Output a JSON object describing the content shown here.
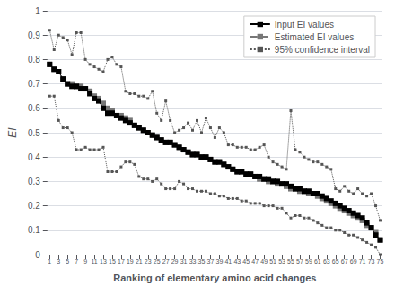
{
  "chart_data": {
    "type": "line",
    "x": [
      1,
      2,
      3,
      4,
      5,
      6,
      7,
      8,
      9,
      10,
      11,
      12,
      13,
      14,
      15,
      16,
      17,
      18,
      19,
      20,
      21,
      22,
      23,
      24,
      25,
      26,
      27,
      28,
      29,
      30,
      31,
      32,
      33,
      34,
      35,
      36,
      37,
      38,
      39,
      40,
      41,
      42,
      43,
      44,
      45,
      46,
      47,
      48,
      49,
      50,
      51,
      52,
      53,
      54,
      55,
      56,
      57,
      58,
      59,
      60,
      61,
      62,
      63,
      64,
      65,
      66,
      67,
      68,
      69,
      70,
      71,
      72,
      73,
      74,
      75
    ],
    "series": [
      {
        "name": "Input EI values",
        "color": "#000000",
        "marker": "square",
        "line_style": "solid",
        "values": [
          0.78,
          0.76,
          0.75,
          0.72,
          0.7,
          0.69,
          0.69,
          0.68,
          0.68,
          0.66,
          0.64,
          0.63,
          0.6,
          0.58,
          0.58,
          0.57,
          0.56,
          0.55,
          0.54,
          0.53,
          0.52,
          0.51,
          0.5,
          0.49,
          0.48,
          0.47,
          0.46,
          0.46,
          0.45,
          0.44,
          0.43,
          0.42,
          0.41,
          0.41,
          0.4,
          0.4,
          0.39,
          0.38,
          0.38,
          0.37,
          0.36,
          0.35,
          0.34,
          0.34,
          0.33,
          0.33,
          0.32,
          0.32,
          0.31,
          0.31,
          0.3,
          0.3,
          0.29,
          0.29,
          0.28,
          0.27,
          0.27,
          0.26,
          0.26,
          0.25,
          0.25,
          0.24,
          0.23,
          0.22,
          0.21,
          0.2,
          0.19,
          0.18,
          0.17,
          0.16,
          0.15,
          0.13,
          0.11,
          0.08,
          0.06
        ]
      },
      {
        "name": "Estimated EI values",
        "color": "#777777",
        "marker": "square",
        "line_style": "dashed",
        "values": [
          0.78,
          0.76,
          0.75,
          0.72,
          0.7,
          0.7,
          0.69,
          0.69,
          0.68,
          0.67,
          0.65,
          0.64,
          0.62,
          0.6,
          0.59,
          0.57,
          0.57,
          0.56,
          0.55,
          0.53,
          0.52,
          0.51,
          0.5,
          0.49,
          0.48,
          0.47,
          0.46,
          0.46,
          0.45,
          0.44,
          0.43,
          0.42,
          0.41,
          0.41,
          0.4,
          0.4,
          0.39,
          0.38,
          0.38,
          0.37,
          0.36,
          0.35,
          0.34,
          0.34,
          0.33,
          0.33,
          0.32,
          0.31,
          0.31,
          0.3,
          0.3,
          0.29,
          0.29,
          0.28,
          0.27,
          0.27,
          0.26,
          0.26,
          0.25,
          0.25,
          0.24,
          0.23,
          0.22,
          0.21,
          0.2,
          0.19,
          0.18,
          0.17,
          0.16,
          0.15,
          0.14,
          0.12,
          0.11,
          0.09,
          0.06
        ]
      },
      {
        "name": "95% confidence interval",
        "color": "#555555",
        "marker": "square",
        "line_style": "dotted",
        "values": [
          0.92,
          0.84,
          0.9,
          0.89,
          0.88,
          0.82,
          0.91,
          0.91,
          0.8,
          0.78,
          0.77,
          0.76,
          0.75,
          0.8,
          0.81,
          0.78,
          0.77,
          0.67,
          0.66,
          0.66,
          0.65,
          0.65,
          0.64,
          0.67,
          0.58,
          0.55,
          0.63,
          0.55,
          0.5,
          0.51,
          0.52,
          0.54,
          0.51,
          0.55,
          0.5,
          0.56,
          0.52,
          0.48,
          0.52,
          0.5,
          0.45,
          0.45,
          0.44,
          0.44,
          0.44,
          0.43,
          0.43,
          0.44,
          0.45,
          0.4,
          0.38,
          0.37,
          0.36,
          0.35,
          0.59,
          0.43,
          0.42,
          0.4,
          0.39,
          0.38,
          0.38,
          0.37,
          0.36,
          0.35,
          0.27,
          0.26,
          0.28,
          0.26,
          0.25,
          0.27,
          0.25,
          0.24,
          0.25,
          0.2,
          0.14
        ]
      },
      {
        "name": "95% confidence interval",
        "color": "#555555",
        "marker": "square",
        "line_style": "dotted",
        "values": [
          0.65,
          0.65,
          0.55,
          0.52,
          0.52,
          0.5,
          0.43,
          0.43,
          0.44,
          0.43,
          0.43,
          0.43,
          0.44,
          0.34,
          0.34,
          0.34,
          0.36,
          0.38,
          0.38,
          0.37,
          0.32,
          0.31,
          0.31,
          0.3,
          0.31,
          0.29,
          0.27,
          0.27,
          0.27,
          0.3,
          0.29,
          0.27,
          0.27,
          0.26,
          0.26,
          0.26,
          0.25,
          0.25,
          0.24,
          0.24,
          0.23,
          0.23,
          0.23,
          0.22,
          0.22,
          0.21,
          0.21,
          0.21,
          0.2,
          0.2,
          0.2,
          0.19,
          0.19,
          0.17,
          0.15,
          0.16,
          0.16,
          0.15,
          0.15,
          0.14,
          0.13,
          0.12,
          0.11,
          0.11,
          0.1,
          0.1,
          0.09,
          0.08,
          0.08,
          0.07,
          0.06,
          0.05,
          0.04,
          0.03,
          0.0
        ]
      }
    ],
    "xlabel": "Ranking of elementary amino acid changes",
    "ylabel": "EI",
    "xlim": [
      0.5,
      75.5
    ],
    "xticks": [
      1,
      3,
      5,
      7,
      9,
      11,
      13,
      15,
      17,
      19,
      21,
      23,
      25,
      27,
      29,
      31,
      33,
      35,
      37,
      39,
      41,
      43,
      45,
      47,
      49,
      51,
      53,
      55,
      57,
      59,
      61,
      63,
      65,
      67,
      69,
      71,
      73,
      75
    ],
    "ylim": [
      0,
      1
    ],
    "yticks": [
      0,
      0.1,
      0.2,
      0.3,
      0.4,
      0.5,
      0.6,
      0.7,
      0.8,
      0.9,
      1
    ],
    "grid": true,
    "legend": "upper right"
  }
}
